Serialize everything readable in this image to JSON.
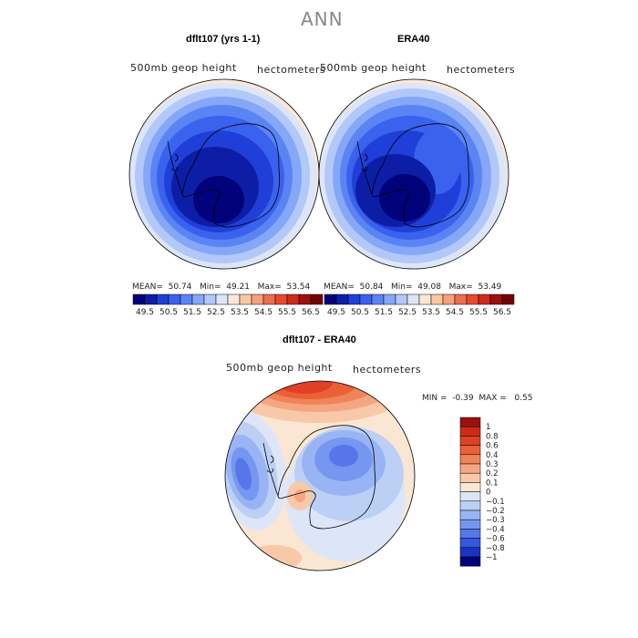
{
  "figure_title": "ANN",
  "panels": {
    "model": {
      "title": "dflt107 (yrs 1-1)",
      "variable": "500mb geop height",
      "units": "hectometers",
      "stats": {
        "mean_label": "MEAN=",
        "mean": "50.74",
        "min_label": "Min=",
        "min": "49.21",
        "max_label": "Max=",
        "max": "53.54"
      }
    },
    "obs": {
      "title": "ERA40",
      "variable": "500mb geop height",
      "units": "hectometers",
      "stats": {
        "mean_label": "MEAN=",
        "mean": "50.84",
        "min_label": "Min=",
        "min": "49.08",
        "max_label": "Max=",
        "max": "53.49"
      }
    },
    "diff": {
      "title": "dflt107 - ERA40",
      "variable": "500mb geop height",
      "units": "hectometers",
      "stats": {
        "min_label": "MIN =",
        "min": "-0.39",
        "max_label": "MAX =",
        "max": "0.55"
      }
    }
  },
  "chart_data": [
    {
      "type": "heatmap",
      "name": "model_field",
      "projection": "south polar stereographic",
      "colorbar_levels": [
        "49.5",
        "50.5",
        "51.5",
        "52.5",
        "53.5",
        "54.5",
        "55.5",
        "56.5"
      ],
      "colorbar_colors": [
        "#02027a",
        "#0d1ea6",
        "#1f3fd8",
        "#3a62ee",
        "#5a84f4",
        "#84a7f7",
        "#b2c8f8",
        "#dde6f8",
        "#fbe8d8",
        "#f9c7a4",
        "#f4a07b",
        "#ec6e4c",
        "#e54a2c",
        "#cd2a1a",
        "#9c1010",
        "#720202"
      ],
      "stats": {
        "mean": 50.74,
        "min": 49.21,
        "max": 53.54
      }
    },
    {
      "type": "heatmap",
      "name": "obs_field",
      "projection": "south polar stereographic",
      "colorbar_levels": [
        "49.5",
        "50.5",
        "51.5",
        "52.5",
        "53.5",
        "54.5",
        "55.5",
        "56.5"
      ],
      "colorbar_colors": [
        "#02027a",
        "#0d1ea6",
        "#1f3fd8",
        "#3a62ee",
        "#5a84f4",
        "#84a7f7",
        "#b2c8f8",
        "#dde6f8",
        "#fbe8d8",
        "#f9c7a4",
        "#f4a07b",
        "#ec6e4c",
        "#e54a2c",
        "#cd2a1a",
        "#9c1010",
        "#720202"
      ],
      "stats": {
        "mean": 50.84,
        "min": 49.08,
        "max": 53.49
      }
    },
    {
      "type": "heatmap",
      "name": "difference_field",
      "projection": "south polar stereographic",
      "colorbar_levels": [
        "1",
        "0.8",
        "0.6",
        "0.4",
        "0.3",
        "0.2",
        "0.1",
        "0",
        "−0.1",
        "−0.2",
        "−0.3",
        "−0.4",
        "−0.6",
        "−0.8",
        "−1"
      ],
      "colorbar_colors": [
        "#9c1010",
        "#cd2a1a",
        "#e04026",
        "#ec6038",
        "#f08458",
        "#f4a682",
        "#f8c8a8",
        "#fbe6d4",
        "#dde6f8",
        "#bcd0f6",
        "#98b4f4",
        "#7796f0",
        "#5676ea",
        "#3556de",
        "#1a34c4",
        "#02027a"
      ],
      "stats": {
        "min": -0.39,
        "max": 0.55
      }
    }
  ]
}
